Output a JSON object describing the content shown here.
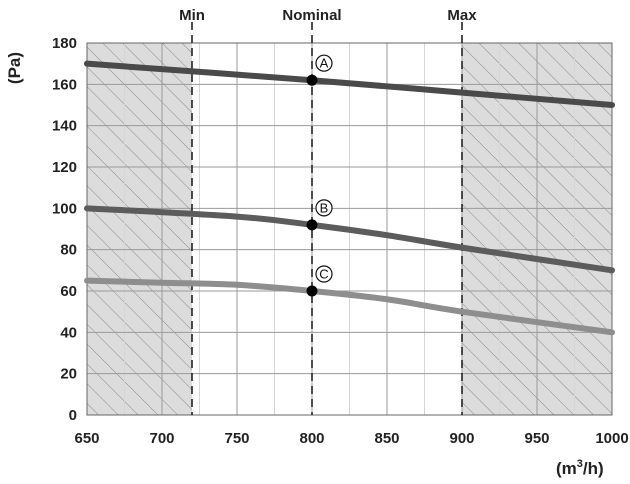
{
  "chart_data": {
    "type": "line",
    "xlabel_main": "(m",
    "xlabel_sup": "3",
    "xlabel_end": "/h)",
    "ylabel": "(Pa)",
    "xlim": [
      650,
      1000
    ],
    "ylim": [
      0,
      180
    ],
    "x_ticks": [
      650,
      700,
      750,
      800,
      850,
      900,
      950,
      1000
    ],
    "y_ticks": [
      0,
      20,
      40,
      60,
      80,
      100,
      120,
      140,
      160,
      180
    ],
    "grid": true,
    "hatched_regions": [
      [
        650,
        720
      ],
      [
        900,
        1000
      ]
    ],
    "reference_lines": [
      {
        "x": 720,
        "label": "Min"
      },
      {
        "x": 800,
        "label": "Nominal"
      },
      {
        "x": 900,
        "label": "Max"
      }
    ],
    "series": [
      {
        "label": "A",
        "color": "#4a4a4a",
        "x": [
          650,
          800,
          900,
          1000
        ],
        "y": [
          170,
          162,
          156,
          150
        ]
      },
      {
        "label": "B",
        "color": "#5c5c5c",
        "x": [
          650,
          750,
          800,
          850,
          900,
          1000
        ],
        "y": [
          100,
          96,
          92,
          87,
          81,
          70
        ]
      },
      {
        "label": "C",
        "color": "#8e8e8e",
        "x": [
          650,
          700,
          750,
          800,
          850,
          900,
          1000
        ],
        "y": [
          65,
          64,
          63,
          60,
          56,
          50,
          40
        ]
      }
    ],
    "operating_points": [
      {
        "label": "A",
        "x": 800,
        "y": 162
      },
      {
        "label": "B",
        "x": 800,
        "y": 92
      },
      {
        "label": "C",
        "x": 800,
        "y": 60
      }
    ]
  }
}
